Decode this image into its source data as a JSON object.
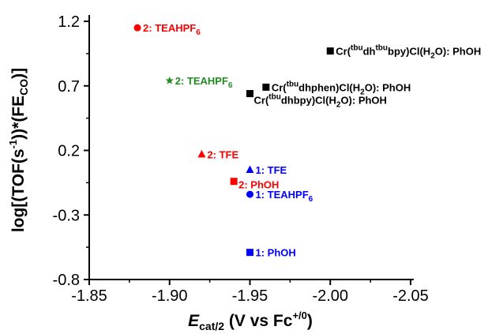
{
  "chart_data": {
    "type": "scatter",
    "xlabel": "E_cat/2 (V vs Fc+/0)",
    "ylabel": "log[(TOF(s-1))*(FE_CO)]",
    "xlim": [
      -1.85,
      -2.05
    ],
    "ylim": [
      -0.8,
      1.2
    ],
    "x_axis_reversed": true,
    "xticks": [
      -1.85,
      -1.9,
      -1.95,
      -2.0,
      -2.05
    ],
    "xtick_labels": [
      "-1.85",
      "-1.90",
      "-1.95",
      "-2.00",
      "-2.05"
    ],
    "yticks": [
      -0.8,
      -0.3,
      0.2,
      0.7,
      1.2
    ],
    "ytick_labels": [
      "-0.8",
      "-0.3",
      "0.2",
      "0.7",
      "1.2"
    ],
    "grid": false,
    "legend": "none (points labelled directly)",
    "points": [
      {
        "x": -1.88,
        "y": 1.15,
        "marker": "circle",
        "color": "#ff0000",
        "label": "2: TEAHPF",
        "label_sub": "6",
        "label_tail": ""
      },
      {
        "x": -1.9,
        "y": 0.74,
        "marker": "star",
        "color": "#228b22",
        "label": "2: TEAHPF",
        "label_sub": "6",
        "label_tail": ""
      },
      {
        "x": -1.92,
        "y": 0.17,
        "marker": "triangle",
        "color": "#ff0000",
        "label": "2: TFE",
        "label_sub": "",
        "label_tail": ""
      },
      {
        "x": -1.94,
        "y": -0.04,
        "marker": "square",
        "color": "#ff0000",
        "label": "2: PhOH",
        "label_sub": "",
        "label_tail": ""
      },
      {
        "x": -1.95,
        "y": 0.05,
        "marker": "triangle",
        "color": "#0000ff",
        "label": "1: TFE",
        "label_sub": "",
        "label_tail": ""
      },
      {
        "x": -1.95,
        "y": -0.14,
        "marker": "circle",
        "color": "#0000ff",
        "label": "1: TEAHPF",
        "label_sub": "6",
        "label_tail": ""
      },
      {
        "x": -1.95,
        "y": -0.59,
        "marker": "square",
        "color": "#0000ff",
        "label": "1: PhOH",
        "label_sub": "",
        "label_tail": ""
      },
      {
        "x": -1.95,
        "y": 0.64,
        "marker": "square",
        "color": "#000000",
        "label": "Cr(",
        "label_sup": "tbu",
        "label_tail": "dhbpy)Cl(H2O): PhOH"
      },
      {
        "x": -1.96,
        "y": 0.69,
        "marker": "square",
        "color": "#000000",
        "label": "Cr(",
        "label_sup": "tbu",
        "label_tail": "dhphen)Cl(H2O): PhOH"
      },
      {
        "x": -2.0,
        "y": 0.97,
        "marker": "square",
        "color": "#000000",
        "label": "Cr(",
        "label_sup": "tbu",
        "label_mid": "dh",
        "label_sup2": "tbu",
        "label_tail": "bpy)Cl(H2O): PhOH"
      }
    ]
  },
  "axis_title": {
    "x_main": "E",
    "x_sub": "cat/2",
    "x_rest": " (V vs Fc",
    "x_sup": "+/0",
    "x_close": ")",
    "y_main": "log[(TOF(s",
    "y_sup": "-1",
    "y_mid": "))*(FE",
    "y_sub": "CO",
    "y_close": ")]"
  }
}
